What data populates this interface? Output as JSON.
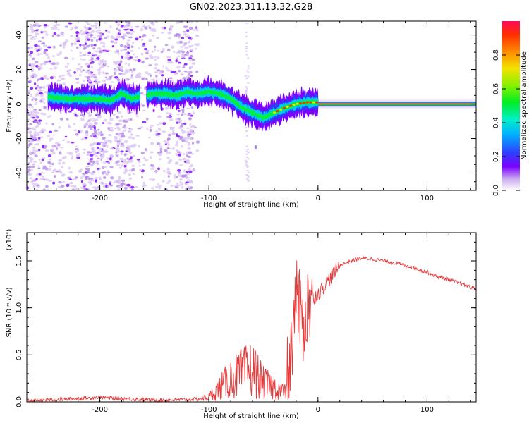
{
  "title": "GN02.2023.311.13.32.G28",
  "chart_data": [
    {
      "type": "heatmap",
      "xlabel": "Height of straight line (km)",
      "ylabel": "Frequency (Hz)",
      "xlim": [
        -267,
        145
      ],
      "ylim": [
        -50,
        48
      ],
      "xticks": [
        -200,
        -100,
        0,
        100
      ],
      "xtick_labels": [
        "-200",
        "-100",
        "0",
        "100"
      ],
      "yticks": [
        -40,
        -20,
        0,
        20,
        40
      ],
      "ytick_labels": [
        "-40",
        "-20",
        "0",
        "20",
        "40"
      ],
      "colorbar": {
        "label": "Normalized spectral amplitude",
        "range": [
          0,
          1
        ],
        "ticks": [
          0.0,
          0.2,
          0.4,
          0.6,
          0.8
        ],
        "tick_labels": [
          "0.0",
          "0.2",
          "0.4",
          "0.6",
          "0.8"
        ]
      },
      "ridge": {
        "x": [
          -245,
          -230,
          -215,
          -200,
          -190,
          -180,
          -170,
          -160,
          -150,
          -140,
          -130,
          -120,
          -110,
          -100,
          -90,
          -80,
          -70,
          -60,
          -50,
          -40,
          -30,
          -20,
          -10,
          0,
          20,
          50,
          100,
          145
        ],
        "y": [
          4,
          3,
          3,
          3,
          2,
          6,
          3,
          5,
          6,
          6,
          5,
          7,
          6,
          7,
          6,
          3,
          -2,
          -5,
          -8,
          -5,
          -2,
          0,
          1,
          1,
          0,
          0,
          0,
          0
        ]
      },
      "grid": false
    },
    {
      "type": "line",
      "xlabel": "Height of straight line (km)",
      "ylabel": "SNR (10 * v/v)",
      "y_multiplier": "(x10⁴)",
      "xlim": [
        -267,
        145
      ],
      "ylim": [
        0,
        1.8
      ],
      "xticks": [
        -200,
        -100,
        0,
        100
      ],
      "xtick_labels": [
        "-200",
        "-100",
        "0",
        "100"
      ],
      "yticks": [
        0.0,
        0.5,
        1.0,
        1.5
      ],
      "ytick_labels": [
        "0.0",
        "0.5",
        "1.0",
        "1.5"
      ],
      "series": [
        {
          "color": "#e8393a",
          "x": [
            -267,
            -250,
            -230,
            -210,
            -200,
            -190,
            -170,
            -150,
            -130,
            -110,
            -100,
            -90,
            -80,
            -70,
            -60,
            -50,
            -40,
            -30,
            -25,
            -20,
            -15,
            -10,
            -5,
            0,
            10,
            20,
            30,
            40,
            50,
            60,
            70,
            80,
            90,
            100,
            110,
            120,
            130,
            145
          ],
          "y": [
            0.01,
            0.02,
            0.03,
            0.04,
            0.05,
            0.04,
            0.03,
            0.02,
            0.02,
            0.03,
            0.05,
            0.15,
            0.25,
            0.3,
            0.35,
            0.2,
            0.15,
            0.1,
            0.5,
            1.2,
            0.8,
            1.0,
            1.1,
            1.15,
            1.3,
            1.45,
            1.5,
            1.53,
            1.52,
            1.5,
            1.48,
            1.45,
            1.42,
            1.38,
            1.33,
            1.3,
            1.26,
            1.2
          ]
        }
      ],
      "grid": false
    }
  ]
}
